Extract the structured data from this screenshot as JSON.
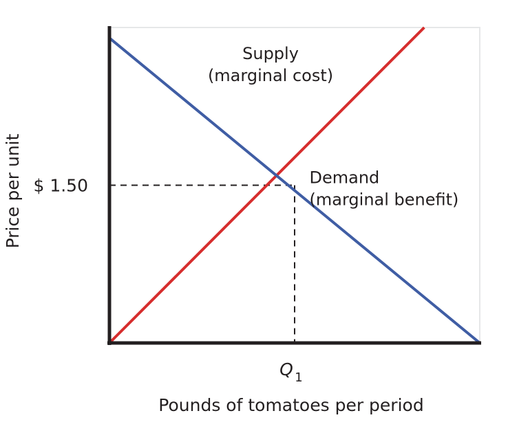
{
  "chart_data": {
    "type": "line",
    "title": "",
    "xlabel": "Pounds of tomatoes per period",
    "ylabel": "Price per unit",
    "xlim": [
      0,
      2
    ],
    "ylim": [
      0,
      3
    ],
    "grid": false,
    "legend": "none",
    "x_ticks": [
      {
        "value": 1,
        "label": "Q",
        "subscript": "1"
      }
    ],
    "y_ticks": [
      {
        "value": 1.5,
        "label": "$ 1.50"
      }
    ],
    "series": [
      {
        "name": "Supply",
        "color": "#d62d2d",
        "points": [
          [
            0,
            0
          ],
          [
            1.7,
            3
          ]
        ]
      },
      {
        "name": "Demand",
        "color": "#3f5da4",
        "points": [
          [
            0,
            2.9
          ],
          [
            2,
            0
          ]
        ]
      }
    ],
    "annotations": [
      {
        "lines": [
          "Supply",
          "(marginal cost)"
        ],
        "x": 0.87,
        "y": 2.7,
        "anchor": "middle"
      },
      {
        "lines": [
          "Demand",
          "(marginal benefit)"
        ],
        "x": 1.08,
        "y": 1.52,
        "anchor": "start"
      }
    ],
    "reference_point": {
      "x": 1,
      "y": 1.5
    },
    "colors": {
      "axis": "#231f20",
      "frame": "#e6e7e8",
      "guide": "#231f20"
    }
  }
}
